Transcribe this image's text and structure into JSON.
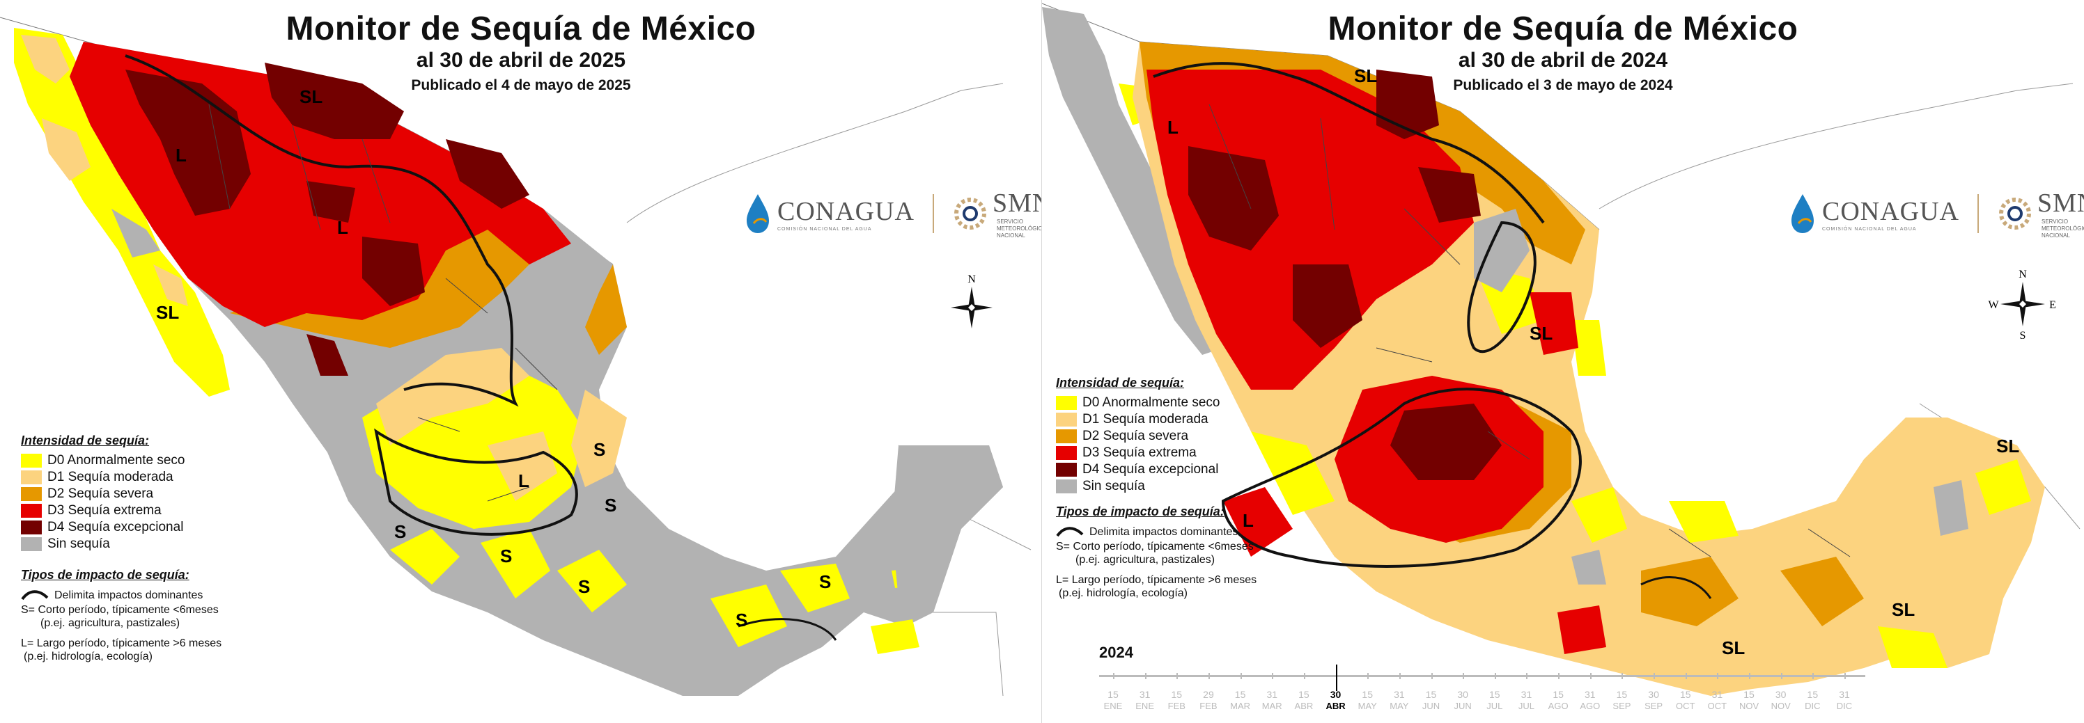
{
  "panels": [
    {
      "title": "Monitor de Sequía de México",
      "date_line": "al 30 de abril de 2025",
      "published_line": "Publicado el 4 de mayo de 2025",
      "logos": {
        "conagua": "CONAGUA",
        "conagua_sub": "COMISIÓN NACIONAL DEL AGUA",
        "smn": "SMN",
        "smn_sub_1": "SERVICIO",
        "smn_sub_2": "METEOROLÓGICO",
        "smn_sub_3": "NACIONAL"
      },
      "compass": {
        "n": "N"
      },
      "legend": {
        "heading": "Intensidad de sequía:",
        "items": [
          "D0 Anormalmente seco",
          "D1 Sequía moderada",
          "D2 Sequía severa",
          "D3 Sequía extrema",
          "D4 Sequía excepcional",
          "Sin sequía"
        ],
        "impact_heading": "Tipos de impacto de sequía:",
        "impact_line": "Delimita impactos dominantes",
        "s_note_1": "S= Corto período, típicamente <6meses",
        "s_note_2": "(p.ej. agricultura, pastizales)",
        "l_note_1": "L= Largo período, típicamente >6 meses",
        "l_note_2": "(p.ej. hidrología, ecología)"
      },
      "map_labels": [
        "SL",
        "L",
        "L",
        "SL",
        "L",
        "S",
        "S",
        "S",
        "S",
        "S",
        "S",
        "S"
      ]
    },
    {
      "title": "Monitor de Sequía de México",
      "date_line": "al 30 de abril de 2024",
      "published_line": "Publicado el 3 de mayo de 2024",
      "logos": {
        "conagua": "CONAGUA",
        "conagua_sub": "COMISIÓN NACIONAL DEL AGUA",
        "smn": "SMN",
        "smn_sub_1": "SERVICIO",
        "smn_sub_2": "METEOROLÓGICO",
        "smn_sub_3": "NACIONAL"
      },
      "compass": {
        "n": "N",
        "s": "S",
        "e": "E",
        "w": "W"
      },
      "legend": {
        "heading": "Intensidad de sequía:",
        "items": [
          "D0 Anormalmente seco",
          "D1 Sequía moderada",
          "D2 Sequía severa",
          "D3 Sequía extrema",
          "D4 Sequía excepcional",
          "Sin sequía"
        ],
        "impact_heading": "Tipos de impacto de sequía:",
        "impact_line": "Delimita impactos dominantes",
        "s_note_1": "S= Corto período, típicamente <6meses",
        "s_note_2": "(p.ej. agricultura, pastizales)",
        "l_note_1": "L= Largo período, típicamente >6 meses",
        "l_note_2": "(p.ej. hidrología, ecología)"
      },
      "map_labels": [
        "SL",
        "L",
        "SL",
        "L",
        "SL",
        "SL",
        "SL"
      ],
      "timeline": {
        "year": "2024",
        "numbers": [
          "15",
          "31",
          "15",
          "29",
          "15",
          "31",
          "15",
          "30",
          "15",
          "31",
          "15",
          "30",
          "15",
          "31",
          "15",
          "31",
          "15",
          "30",
          "15",
          "31",
          "15",
          "30",
          "15",
          "31"
        ],
        "months": [
          "ENE",
          "ENE",
          "FEB",
          "FEB",
          "MAR",
          "MAR",
          "ABR",
          "ABR",
          "MAY",
          "MAY",
          "JUN",
          "JUN",
          "JUL",
          "JUL",
          "AGO",
          "AGO",
          "SEP",
          "SEP",
          "OCT",
          "OCT",
          "NOV",
          "NOV",
          "DIC",
          "DIC"
        ],
        "active_index": 7
      }
    }
  ],
  "colors": {
    "D0": "#ffff00",
    "D1": "#fcd37f",
    "D2": "#e69800",
    "D3": "#e60000",
    "D4": "#730000",
    "none": "#b2b2b2",
    "conagua_blue": "#1e7fc3",
    "smn_orange": "#c8a97a"
  }
}
